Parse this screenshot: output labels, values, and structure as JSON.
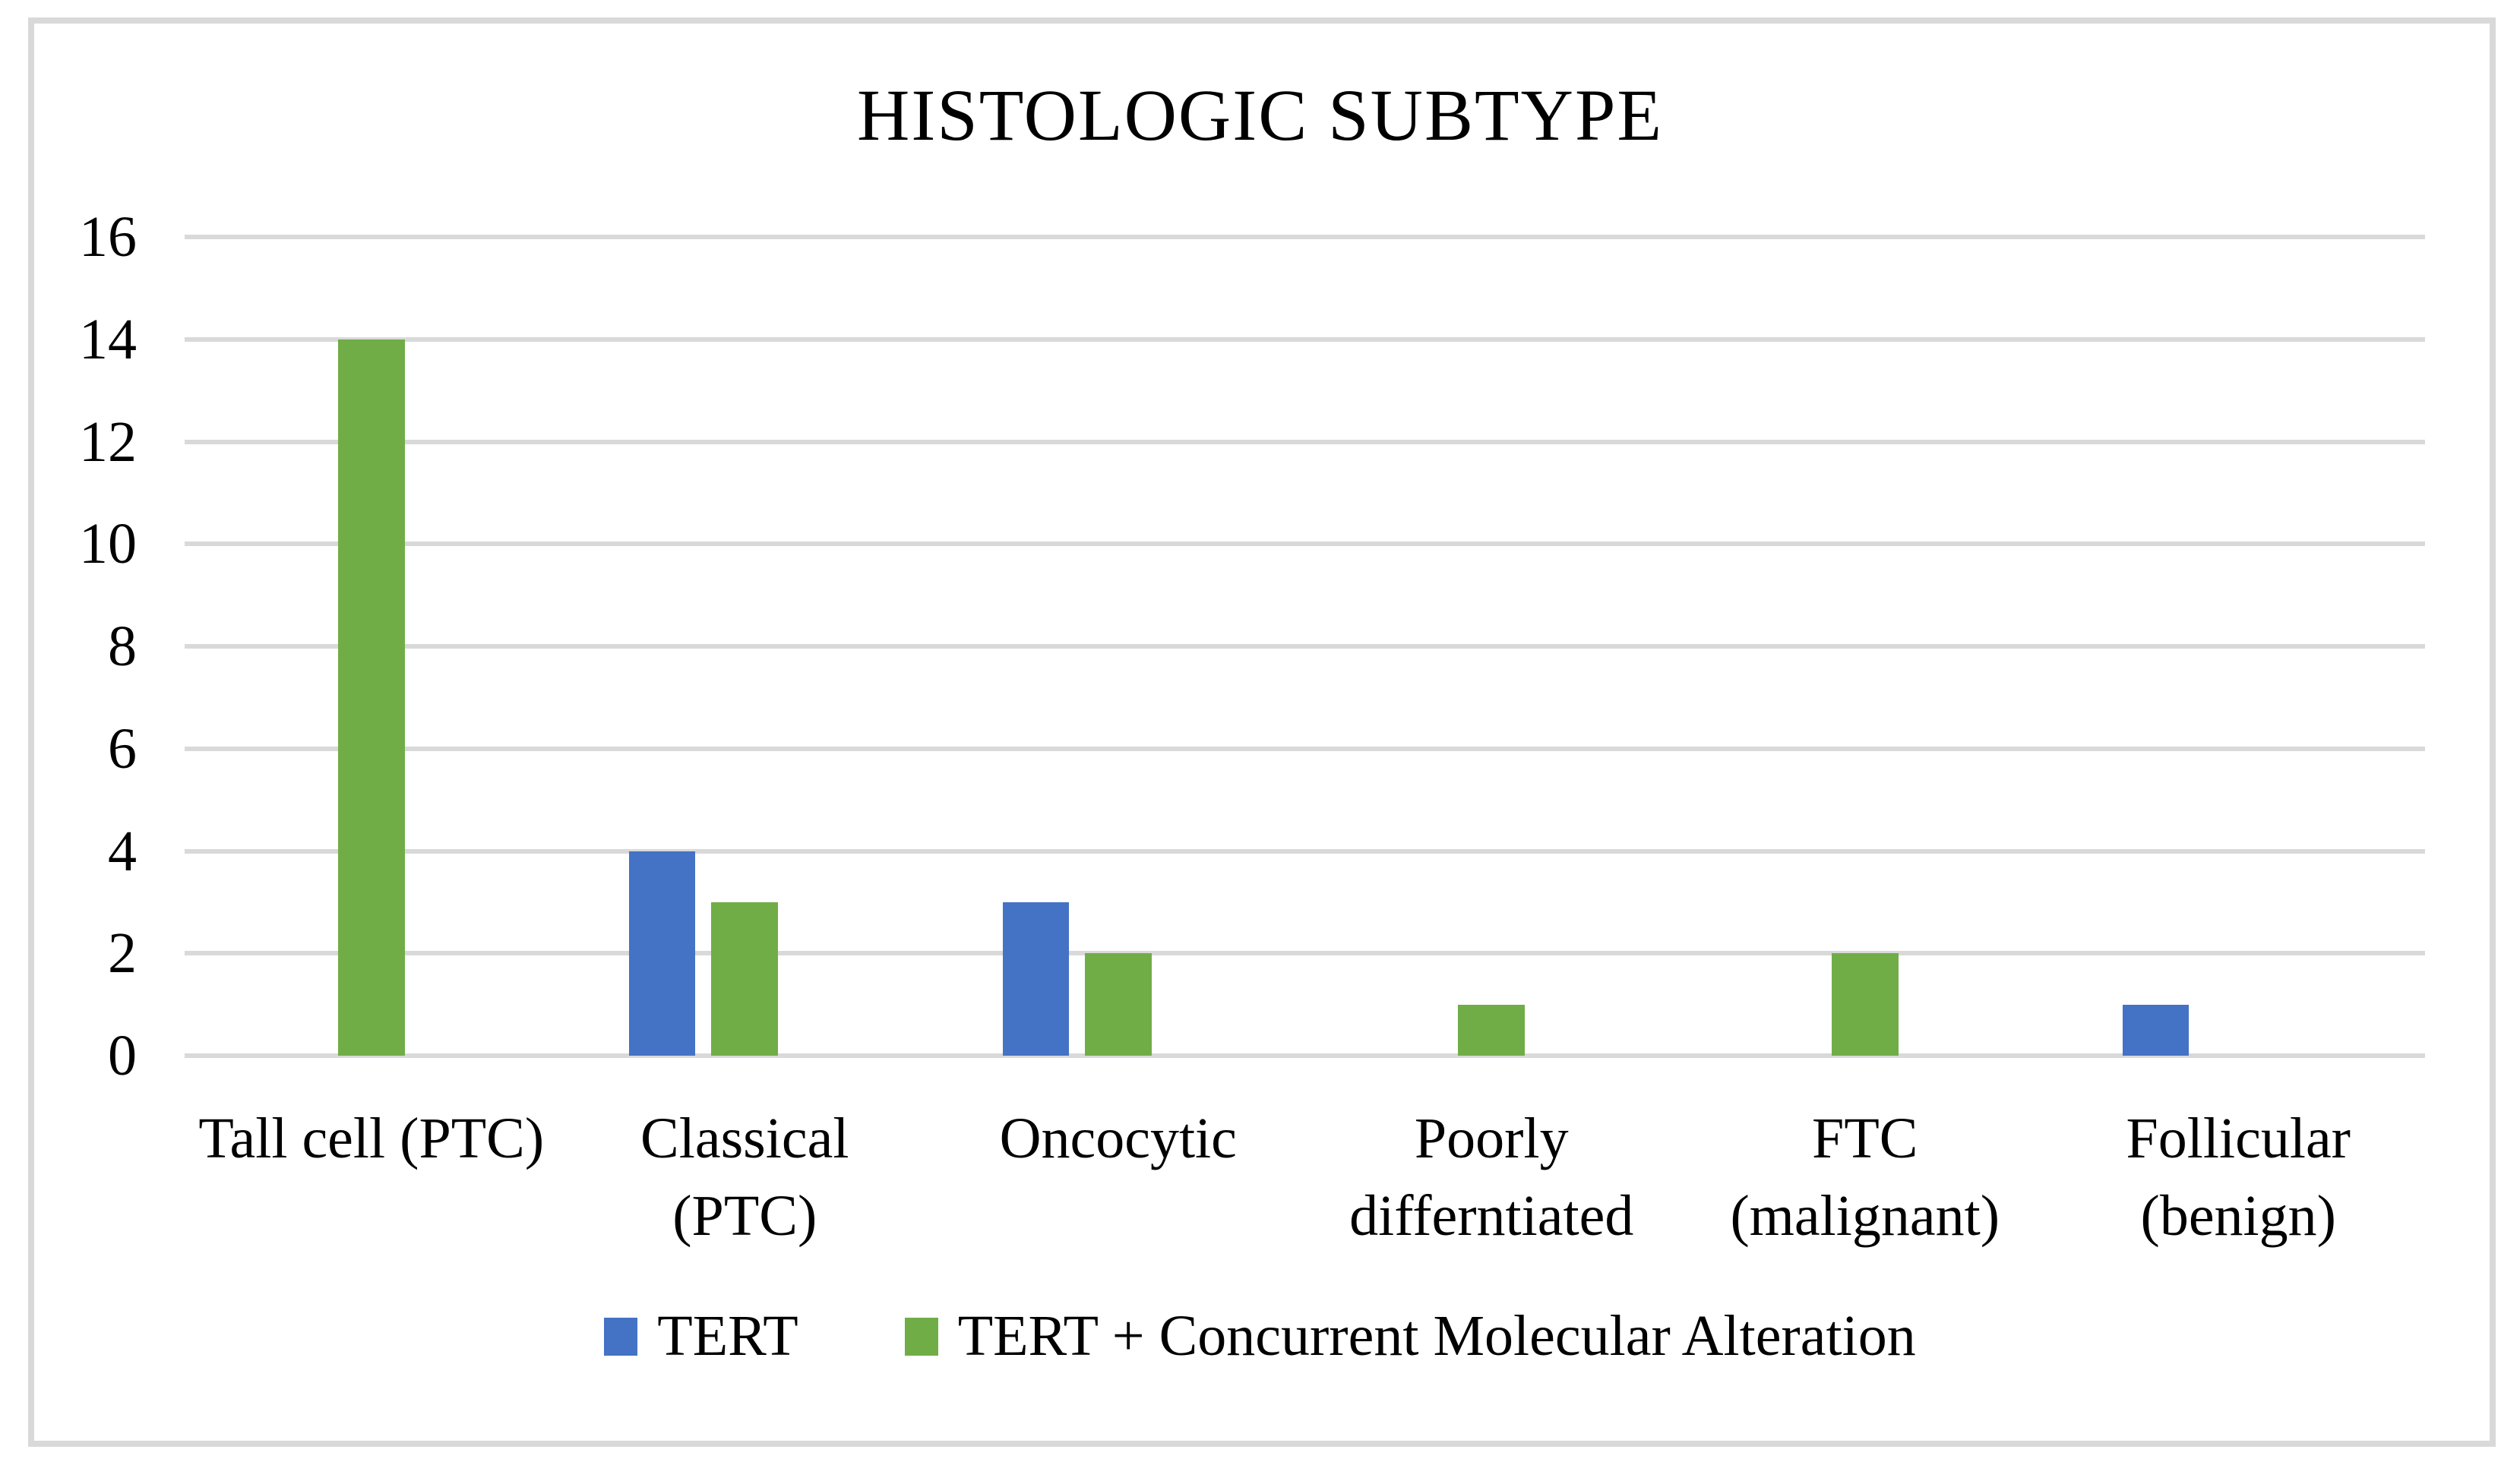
{
  "chart_data": {
    "type": "bar",
    "title": "HISTOLOGIC SUBTYPE",
    "categories": [
      "Tall cell (PTC)",
      "Classical (PTC)",
      "Oncocytic",
      "Poorly differntiated",
      "FTC (malignant)",
      "Follicular (benign)"
    ],
    "category_label_lines": [
      [
        "Tall cell (PTC)"
      ],
      [
        "Classical",
        "(PTC)"
      ],
      [
        "Oncocytic"
      ],
      [
        "Poorly",
        "differntiated"
      ],
      [
        "FTC",
        "(malignant)"
      ],
      [
        "Follicular",
        "(benign)"
      ]
    ],
    "series": [
      {
        "name": "TERT",
        "color": "#4472C4",
        "values": [
          0,
          4,
          3,
          0,
          0,
          1
        ]
      },
      {
        "name": "TERT + Concurrent Molecular Alteration",
        "color": "#70AD47",
        "values": [
          14,
          3,
          2,
          1,
          2,
          0
        ]
      }
    ],
    "y_axis": {
      "min": 0,
      "max": 16,
      "step": 2,
      "tick_labels": [
        "0",
        "2",
        "4",
        "6",
        "8",
        "10",
        "12",
        "14",
        "16"
      ]
    },
    "grid": true,
    "legend_position": "bottom",
    "colors": {
      "gridline": "#D9D9D9",
      "frame_border": "#D9D9D9",
      "text": "#000000",
      "background": "#FFFFFF"
    }
  }
}
